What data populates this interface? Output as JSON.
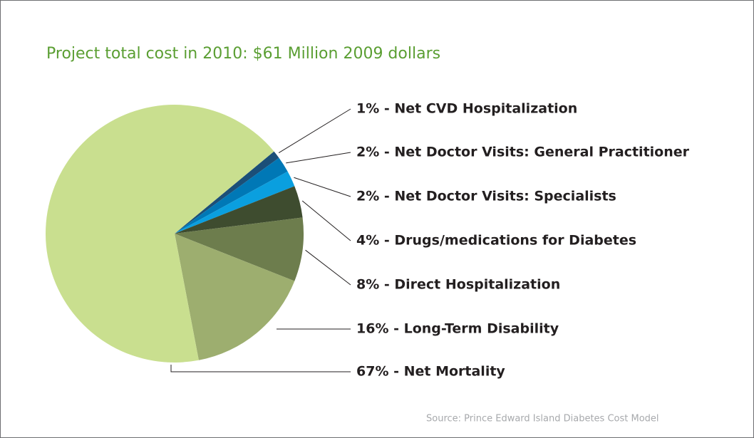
{
  "chart_data": {
    "type": "pie",
    "title": "Project total cost in 2010: $61 Million 2009 dollars",
    "source": "Source: Prince Edward Island Diabetes Cost Model",
    "labels": [
      "1% - Net CVD Hospitalization",
      "2% - Net Doctor Visits: General Practitioner",
      "2% - Net Doctor Visits: Specialists",
      "4% - Drugs/medications for Diabetes",
      "8% - Direct Hospitalization",
      "16% - Long-Term Disability",
      "67% - Net Mortality"
    ],
    "values": [
      1,
      2,
      2,
      4,
      8,
      16,
      67
    ],
    "colors": [
      "#1b4f78",
      "#0078b6",
      "#0a9fdf",
      "#3e4c2f",
      "#6d7d4d",
      "#9dae6f",
      "#c9df8f"
    ]
  }
}
